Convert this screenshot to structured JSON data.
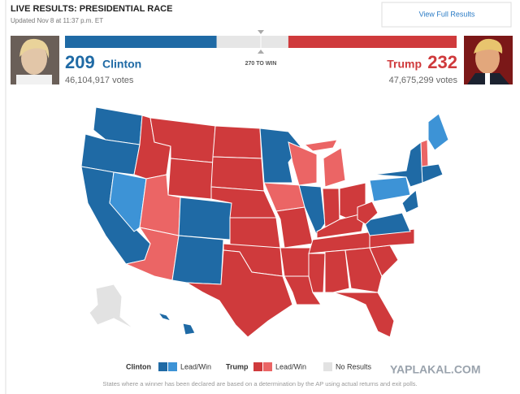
{
  "header": {
    "title": "LIVE RESULTS: PRESIDENTIAL RACE",
    "updated": "Updated Nov 8 at 11:37 p.m. ET",
    "button": "View Full Results"
  },
  "race": {
    "threshold": {
      "value": 270,
      "label": "270 TO WIN"
    },
    "candidates": [
      {
        "name": "Clinton",
        "electoral": 209,
        "votes": {
          "value": 46104917,
          "label": "46,104,917 votes"
        },
        "color": "#1f6aa5"
      },
      {
        "name": "Trump",
        "electoral": 232,
        "votes": {
          "value": 47675299,
          "label": "47,675,299 votes"
        },
        "color": "#cf3a3c"
      }
    ]
  },
  "legend": {
    "clinton": "Clinton",
    "clinton_status": "Lead/Win",
    "trump": "Trump",
    "trump_status": "Lead/Win",
    "none": "No Results"
  },
  "footnote": "States where a winner has been declared are based on a determination by the AP using actual returns and exit polls.",
  "watermark": "YAPLAKAL.COM"
}
